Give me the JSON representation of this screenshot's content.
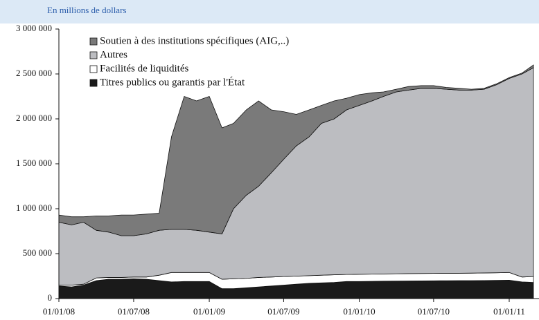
{
  "chart_data": {
    "type": "stacked_area",
    "subtitle": "En millions de dollars",
    "x": [
      "2008-01-01",
      "2008-02-01",
      "2008-03-01",
      "2008-04-01",
      "2008-05-01",
      "2008-06-01",
      "2008-07-01",
      "2008-08-01",
      "2008-09-01",
      "2008-10-01",
      "2008-11-01",
      "2008-12-01",
      "2009-01-01",
      "2009-02-01",
      "2009-03-01",
      "2009-04-01",
      "2009-05-01",
      "2009-06-01",
      "2009-07-01",
      "2009-08-01",
      "2009-09-01",
      "2009-10-01",
      "2009-11-01",
      "2009-12-01",
      "2010-01-01",
      "2010-02-01",
      "2010-03-01",
      "2010-04-01",
      "2010-05-01",
      "2010-06-01",
      "2010-07-01",
      "2010-08-01",
      "2010-09-01",
      "2010-10-01",
      "2010-11-01",
      "2010-12-01",
      "2011-01-01",
      "2011-02-01",
      "2011-03-01"
    ],
    "series": [
      {
        "name": "Soutien à des institutions spécifiques (AIG,..)",
        "color": "#7a7a7a",
        "values": [
          80000,
          90000,
          60000,
          160000,
          180000,
          230000,
          230000,
          220000,
          190000,
          1030000,
          1480000,
          1440000,
          1510000,
          1180000,
          950000,
          950000,
          950000,
          700000,
          530000,
          350000,
          300000,
          200000,
          200000,
          130000,
          120000,
          90000,
          50000,
          30000,
          40000,
          30000,
          30000,
          20000,
          20000,
          10000,
          10000,
          10000,
          10000,
          10000,
          30000
        ]
      },
      {
        "name": "Autres",
        "color": "#bcbdc1",
        "values": [
          700000,
          670000,
          690000,
          530000,
          505000,
          465000,
          460000,
          480000,
          500000,
          480000,
          480000,
          470000,
          450000,
          505000,
          780000,
          925000,
          1015000,
          1160000,
          1305000,
          1450000,
          1545000,
          1690000,
          1735000,
          1832000,
          1880000,
          1928000,
          1976000,
          2024000,
          2042000,
          2061000,
          2060000,
          2049000,
          2038000,
          2037000,
          2045000,
          2093000,
          2160000,
          2260000,
          2325000
        ]
      },
      {
        "name": "Facilités de liquidités",
        "color": "#ffffff",
        "values": [
          10000,
          20000,
          10000,
          30000,
          20000,
          20000,
          20000,
          25000,
          60000,
          105000,
          100000,
          100000,
          100000,
          105000,
          110000,
          105000,
          105000,
          100000,
          95000,
          90000,
          85000,
          85000,
          85000,
          78000,
          80000,
          80000,
          80000,
          81000,
          82000,
          82000,
          82000,
          82000,
          82000,
          83000,
          84000,
          84000,
          85000,
          55000,
          65000
        ]
      },
      {
        "name": "Titres publics ou garantis par l'État",
        "color": "#1a1a1a",
        "values": [
          140000,
          130000,
          150000,
          200000,
          215000,
          215000,
          220000,
          215000,
          200000,
          185000,
          190000,
          190000,
          190000,
          110000,
          110000,
          120000,
          130000,
          140000,
          150000,
          160000,
          170000,
          175000,
          180000,
          190000,
          190000,
          192000,
          194000,
          195000,
          196000,
          197000,
          198000,
          199000,
          200000,
          200000,
          201000,
          203000,
          205000,
          185000,
          180000
        ]
      }
    ],
    "xlim": [
      "2008-01-01",
      "2011-03-01"
    ],
    "xticks": [
      {
        "value": "2008-01-01",
        "label": "01/01/08"
      },
      {
        "value": "2008-07-01",
        "label": "01/07/08"
      },
      {
        "value": "2009-01-01",
        "label": "01/01/09"
      },
      {
        "value": "2009-07-01",
        "label": "01/07/09"
      },
      {
        "value": "2010-01-01",
        "label": "01/01/10"
      },
      {
        "value": "2010-07-01",
        "label": "01/07/10"
      },
      {
        "value": "2011-01-01",
        "label": "01/01/11"
      }
    ],
    "ylim": [
      0,
      3000000
    ],
    "yticks": [
      0,
      {
        "value": 500000,
        "label": "500 000"
      },
      {
        "value": 1000000,
        "label": "1 000 000"
      },
      {
        "value": 1500000,
        "label": "1 500 000"
      },
      {
        "value": 2000000,
        "label": "2 000 000"
      },
      {
        "value": 2500000,
        "label": "2 500 000"
      },
      {
        "value": 3000000,
        "label": "3 000 000"
      }
    ],
    "legend": "top-left"
  }
}
